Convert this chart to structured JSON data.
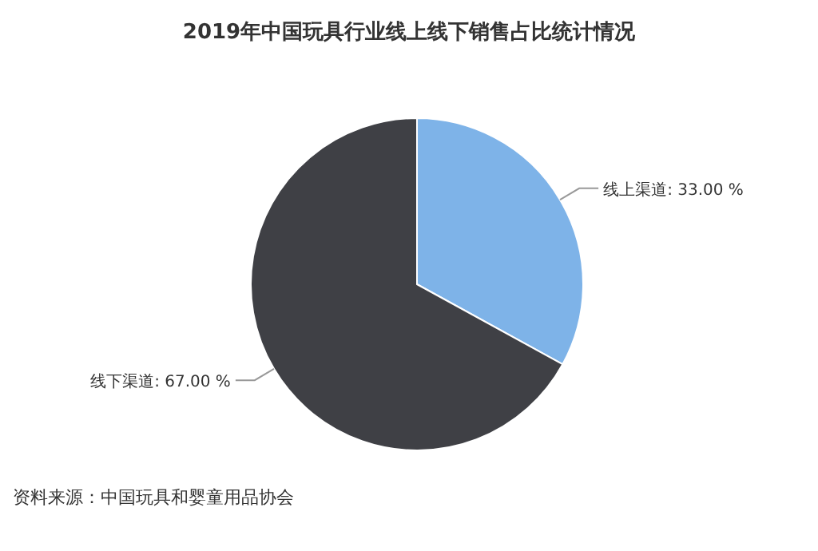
{
  "chart_data": {
    "type": "pie",
    "title": "2019年中国玩具行业线上线下销售占比统计情况",
    "categories": [
      "线上渠道",
      "线下渠道"
    ],
    "values": [
      33.0,
      67.0
    ],
    "colors": [
      "#7eb3e8",
      "#3f4045"
    ],
    "value_labels": [
      "33.00 %",
      "67.00 %"
    ],
    "annotations": [
      "资料来源：中国玩具和婴童用品协会"
    ]
  }
}
